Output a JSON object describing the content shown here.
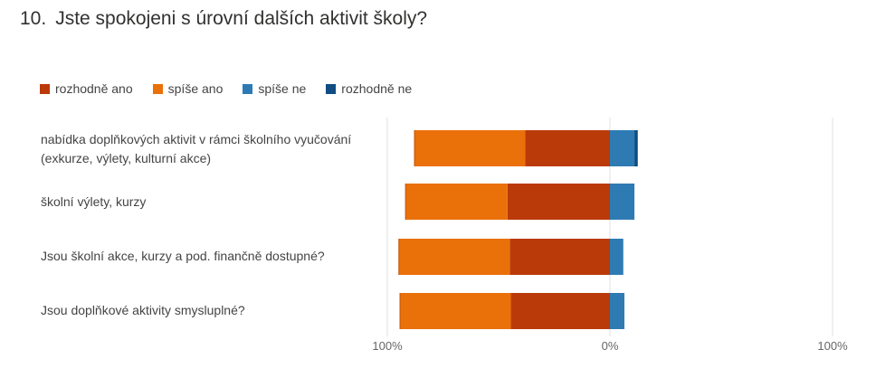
{
  "question": {
    "number": "10.",
    "title": "Jste spokojeni s úrovní dalších aktivit školy?"
  },
  "legend": [
    {
      "label": "rozhodně ano",
      "color": "#BA3A0A"
    },
    {
      "label": "spíše ano",
      "color": "#EA700A"
    },
    {
      "label": "spíše ne",
      "color": "#2E7BB4"
    },
    {
      "label": "rozhodně ne",
      "color": "#0F4D82"
    }
  ],
  "chart_data": {
    "type": "bar",
    "orientation": "horizontal-diverging",
    "stacked": true,
    "categories": [
      "nabídka doplňkových aktivit v rámci školního vyučování (exkurze, výlety, kulturní akce)",
      "školní výlety, kurzy",
      "Jsou školní akce, kurzy a pod. finančně dostupné?",
      "Jsou doplňkové aktivity smysluplné?"
    ],
    "series": [
      {
        "name": "rozhodně ano",
        "side": "positive",
        "color": "#BA3A0A",
        "values": [
          38,
          46,
          45,
          44.5
        ]
      },
      {
        "name": "spíše ano",
        "side": "positive",
        "color": "#EA700A",
        "values": [
          50,
          46,
          50,
          50
        ]
      },
      {
        "name": "spíše ne",
        "side": "negative",
        "color": "#2E7BB4",
        "values": [
          11,
          11,
          6,
          6.5
        ]
      },
      {
        "name": "rozhodně ne",
        "side": "negative",
        "color": "#0F4D82",
        "values": [
          1.5,
          0,
          0,
          0
        ]
      }
    ],
    "xlim": [
      -100,
      100
    ],
    "xticks": [
      "100%",
      "0%",
      "100%"
    ],
    "grid": true,
    "legend_position": "top-left"
  }
}
